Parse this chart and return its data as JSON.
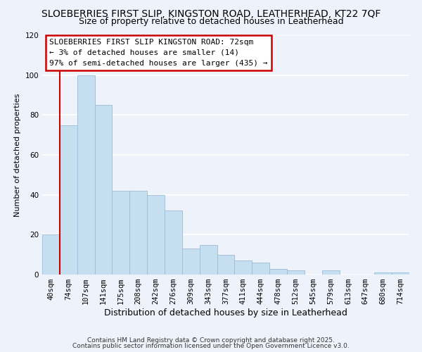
{
  "title": "SLOEBERRIES FIRST SLIP, KINGSTON ROAD, LEATHERHEAD, KT22 7QF",
  "subtitle": "Size of property relative to detached houses in Leatherhead",
  "xlabel": "Distribution of detached houses by size in Leatherhead",
  "ylabel": "Number of detached properties",
  "bar_labels": [
    "40sqm",
    "74sqm",
    "107sqm",
    "141sqm",
    "175sqm",
    "208sqm",
    "242sqm",
    "276sqm",
    "309sqm",
    "343sqm",
    "377sqm",
    "411sqm",
    "444sqm",
    "478sqm",
    "512sqm",
    "545sqm",
    "579sqm",
    "613sqm",
    "647sqm",
    "680sqm",
    "714sqm"
  ],
  "bar_values": [
    20,
    75,
    100,
    85,
    42,
    42,
    40,
    32,
    13,
    15,
    10,
    7,
    6,
    3,
    2,
    0,
    2,
    0,
    0,
    1,
    1
  ],
  "bar_color": "#c5dff0",
  "bar_edge_color": "#9bbdd6",
  "vline_color": "#cc0000",
  "vline_x_index": 1,
  "ylim": [
    0,
    120
  ],
  "annotation_title": "SLOEBERRIES FIRST SLIP KINGSTON ROAD: 72sqm",
  "annotation_line1": "← 3% of detached houses are smaller (14)",
  "annotation_line2": "97% of semi-detached houses are larger (435) →",
  "annotation_box_facecolor": "#ffffff",
  "annotation_box_edgecolor": "#cc0000",
  "footnote1": "Contains HM Land Registry data © Crown copyright and database right 2025.",
  "footnote2": "Contains public sector information licensed under the Open Government Licence v3.0.",
  "background_color": "#eef2fa",
  "grid_color": "#ffffff",
  "title_fontsize": 10,
  "subtitle_fontsize": 9,
  "xlabel_fontsize": 9,
  "ylabel_fontsize": 8,
  "tick_fontsize": 7.5,
  "annotation_fontsize": 8,
  "footnote_fontsize": 6.5
}
